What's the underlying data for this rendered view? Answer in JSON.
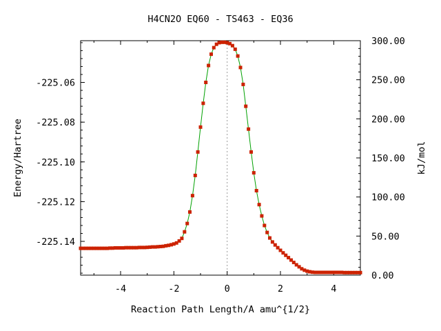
{
  "chart_data": {
    "type": "scatter",
    "title": "H4CN2O    EQ60 - TS463 - EQ36",
    "xlabel": "Reaction Path Length/A amu^{1/2}",
    "ylabel": "Energy/Hartree",
    "y2label": "kJ/mol",
    "xlim": [
      -5.5,
      5.0
    ],
    "ylim": [
      -225.157,
      -225.039
    ],
    "y2lim": [
      0,
      300
    ],
    "x_ticks": [
      "-4",
      "-2",
      "0",
      "2",
      "4"
    ],
    "y_ticks": [
      "-225.06",
      "-225.08",
      "-225.10",
      "-225.12",
      "-225.14"
    ],
    "y2_ticks": [
      "300.00",
      "250.00",
      "200.00",
      "150.00",
      "100.00",
      "50.00",
      "0.00"
    ],
    "grid": false,
    "legend": "none",
    "ts_marker_x": 0.0,
    "colors": {
      "points": "#cc2200",
      "curve": "#00a000",
      "ts_line": "#999999"
    },
    "series": [
      {
        "x": [
          -5.5,
          -5.4,
          -5.3,
          -5.2,
          -5.1,
          -5.0,
          -4.9,
          -4.8,
          -4.7,
          -4.6,
          -4.5,
          -4.4,
          -4.3,
          -4.2,
          -4.1,
          -4.0,
          -3.9,
          -3.8,
          -3.7,
          -3.6,
          -3.5,
          -3.4,
          -3.3,
          -3.2,
          -3.1,
          -3.0,
          -2.9,
          -2.8,
          -2.7,
          -2.6,
          -2.5,
          -2.4,
          -2.3,
          -2.2,
          -2.1,
          -2.0,
          -1.9,
          -1.8,
          -1.7,
          -1.6,
          -1.5,
          -1.4,
          -1.3,
          -1.2,
          -1.1,
          -1.0,
          -0.9,
          -0.8,
          -0.7,
          -0.6,
          -0.5,
          -0.4,
          -0.3,
          -0.2,
          -0.1,
          0.0,
          0.1,
          0.2,
          0.3,
          0.4,
          0.5,
          0.6,
          0.7,
          0.8,
          0.9,
          1.0,
          1.1,
          1.2,
          1.3,
          1.4,
          1.5,
          1.6,
          1.7,
          1.8,
          1.9,
          2.0,
          2.1,
          2.2,
          2.3,
          2.4,
          2.5,
          2.6,
          2.7,
          2.8,
          2.9,
          3.0,
          3.1,
          3.2,
          3.3,
          3.4,
          3.5,
          3.6,
          3.7,
          3.8,
          3.9,
          4.0,
          4.1,
          4.2,
          4.3,
          4.4,
          4.5,
          4.6,
          4.7,
          4.8,
          4.9,
          5.0
        ],
        "y": [
          -225.1435,
          -225.1435,
          -225.1435,
          -225.1435,
          -225.1435,
          -225.1435,
          -225.1435,
          -225.1435,
          -225.1435,
          -225.1435,
          -225.1435,
          -225.1434,
          -225.1434,
          -225.1433,
          -225.1433,
          -225.1433,
          -225.1433,
          -225.1432,
          -225.1432,
          -225.1432,
          -225.1432,
          -225.1432,
          -225.1431,
          -225.1431,
          -225.1431,
          -225.143,
          -225.1429,
          -225.1428,
          -225.1428,
          -225.1427,
          -225.1426,
          -225.1425,
          -225.1422,
          -225.142,
          -225.1417,
          -225.1413,
          -225.1408,
          -225.1398,
          -225.1385,
          -225.1352,
          -225.131,
          -225.1252,
          -225.117,
          -225.1068,
          -225.095,
          -225.0825,
          -225.0705,
          -225.06,
          -225.0515,
          -225.0458,
          -225.0425,
          -225.0408,
          -225.04,
          -225.0398,
          -225.0398,
          -225.04,
          -225.0405,
          -225.0415,
          -225.0433,
          -225.0467,
          -225.0525,
          -225.061,
          -225.072,
          -225.0835,
          -225.095,
          -225.1055,
          -225.1145,
          -225.1215,
          -225.1272,
          -225.132,
          -225.1355,
          -225.1383,
          -225.1403,
          -225.1418,
          -225.1432,
          -225.1445,
          -225.1458,
          -225.147,
          -225.1482,
          -225.1494,
          -225.1506,
          -225.1518,
          -225.1528,
          -225.1538,
          -225.1545,
          -225.155,
          -225.1553,
          -225.1555,
          -225.1556,
          -225.1556,
          -225.1556,
          -225.1556,
          -225.1556,
          -225.1556,
          -225.1556,
          -225.1556,
          -225.1556,
          -225.1556,
          -225.1556,
          -225.1557,
          -225.1557,
          -225.1557,
          -225.1557,
          -225.1557,
          -225.1557,
          -225.1557
        ]
      }
    ]
  }
}
